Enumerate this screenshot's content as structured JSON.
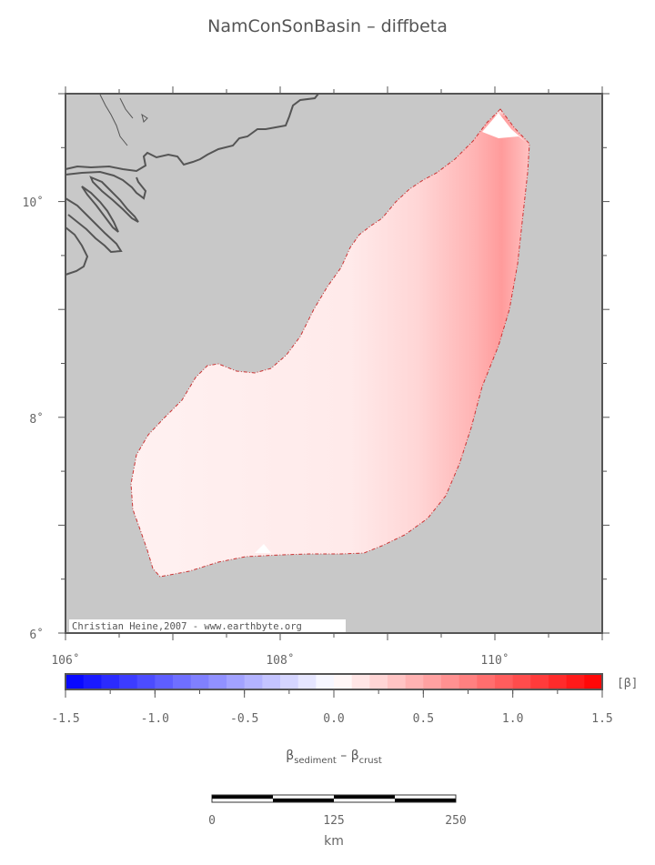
{
  "title": "NamConSonBasin – diffbeta",
  "map": {
    "lat_ticks": [
      {
        "value": 10,
        "label": "10˚"
      },
      {
        "value": 8,
        "label": "8˚"
      },
      {
        "value": 6,
        "label": "6˚"
      }
    ],
    "lon_ticks": [
      {
        "value": 106,
        "label": "106˚"
      },
      {
        "value": 108,
        "label": "108˚"
      },
      {
        "value": 110,
        "label": "110˚"
      }
    ],
    "lon_range": [
      106,
      111
    ],
    "lat_range": [
      6,
      11
    ],
    "credit": "Christian Heine,2007 - www.earthbyte.org",
    "colors": {
      "land": "#c8c8c8",
      "coast": "#555555",
      "outline": "#cc3333"
    }
  },
  "colorbar": {
    "min": -1.5,
    "max": 1.5,
    "step": 0.1,
    "tick_labels": [
      "-1.5",
      "-1.0",
      "-0.5",
      "0.0",
      "0.5",
      "1.0",
      "1.5"
    ],
    "unit": "[β]",
    "label_main1": "β",
    "label_sub1": "sediment",
    "label_mid": " – β",
    "label_sub2": "crust",
    "colors": {
      "negative": "#0000ff",
      "zero": "#ffffff",
      "positive": "#ff0000"
    }
  },
  "scalebar": {
    "tick_labels": [
      "0",
      "125",
      "250"
    ],
    "unit": "km"
  }
}
